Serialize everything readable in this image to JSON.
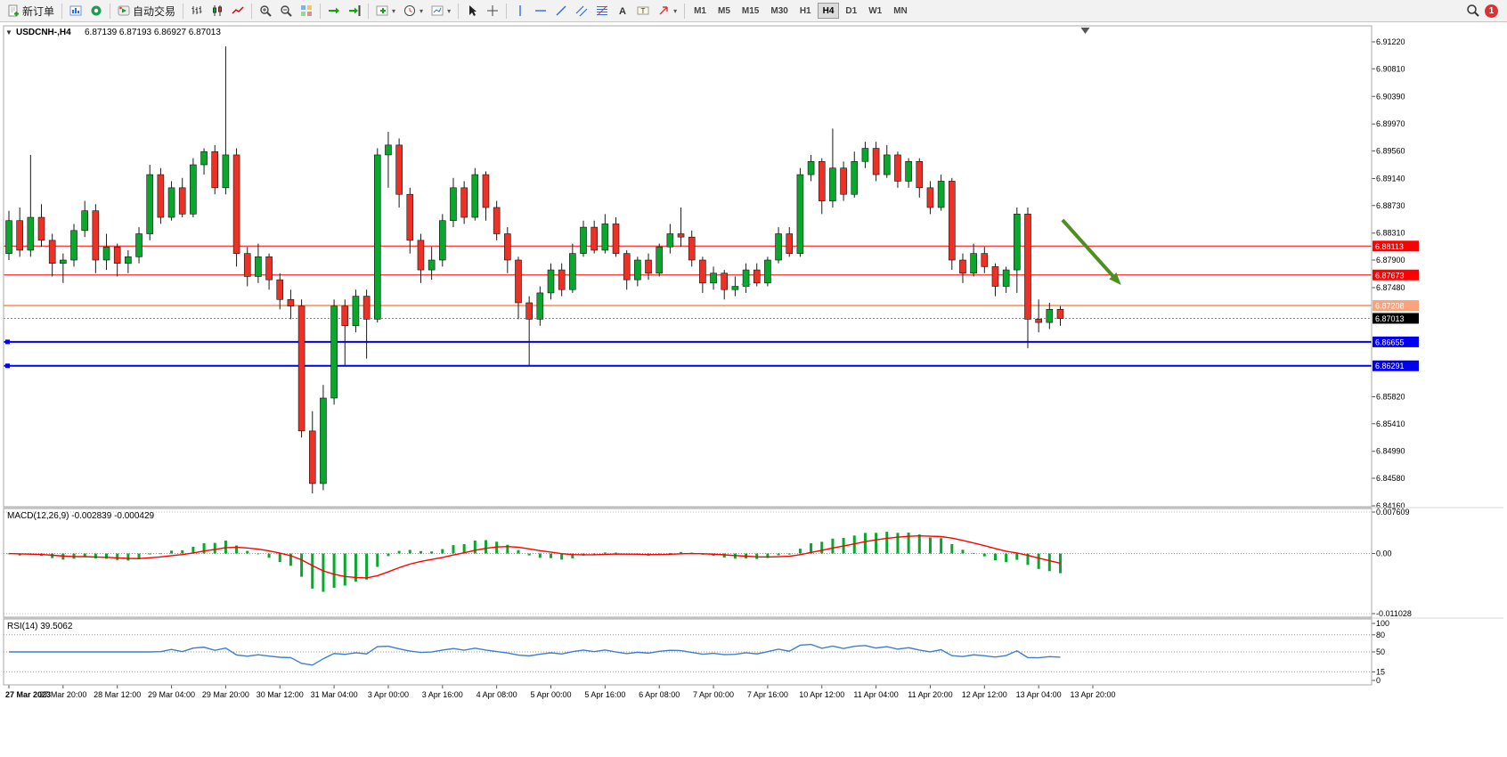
{
  "icons": {
    "quick_trade_arrow": "▼",
    "dropdown_caret": "▾"
  },
  "toolbar": {
    "new_order_label": "新订单",
    "autotrading_label": "自动交易",
    "timeframes": [
      "M1",
      "M5",
      "M15",
      "M30",
      "H1",
      "H4",
      "D1",
      "W1",
      "MN"
    ],
    "active_timeframe": "H4",
    "notification_badge": "1"
  },
  "chart_data": {
    "type": "candlestick",
    "symbol": "USDCNH-",
    "timeframe": "H4",
    "header_title": "USDCNH-,H4",
    "header_quote": "6.87139 6.87193 6.86927 6.87013",
    "quote": {
      "open": "6.87139",
      "high": "6.87193",
      "low": "6.86927",
      "close": "6.87013"
    },
    "ylim": [
      6.8416,
      6.9122
    ],
    "price_ticks": [
      "6.91220",
      "6.90810",
      "6.90390",
      "6.89970",
      "6.89560",
      "6.89140",
      "6.88730",
      "6.88310",
      "6.87900",
      "6.87480",
      "6.85820",
      "6.85410",
      "6.84990",
      "6.84580",
      "6.84160"
    ],
    "time_labels": [
      "27 Mar 2023",
      "27 Mar 20:00",
      "28 Mar 12:00",
      "29 Mar 04:00",
      "29 Mar 20:00",
      "30 Mar 12:00",
      "31 Mar 04:00",
      "3 Apr 00:00",
      "3 Apr 16:00",
      "4 Apr 08:00",
      "5 Apr 00:00",
      "5 Apr 16:00",
      "6 Apr 08:00",
      "7 Apr 00:00",
      "7 Apr 16:00",
      "10 Apr 12:00",
      "11 Apr 04:00",
      "11 Apr 20:00",
      "12 Apr 12:00",
      "13 Apr 04:00",
      "13 Apr 20:00"
    ],
    "colors": {
      "up": "#07a82c",
      "down": "#ee3124",
      "wick": "#1a1a1a",
      "background": "#ffffff"
    },
    "hlines": [
      {
        "price": 6.88113,
        "label": "6.88113",
        "color": "#ff0000",
        "width": 1
      },
      {
        "price": 6.87673,
        "label": "6.87673",
        "color": "#ff0000",
        "width": 1
      },
      {
        "price": 6.87208,
        "label": "6.87208",
        "color": "#f9a27b",
        "width": 2
      },
      {
        "price": 6.86655,
        "label": "6.86655",
        "color": "#0000ee",
        "width": 2,
        "handles": true
      },
      {
        "price": 6.86291,
        "label": "6.86291",
        "color": "#0000ee",
        "width": 2,
        "handles": true
      }
    ],
    "current_price": {
      "value": 6.87013,
      "label": "6.87013",
      "box_color": "#000000"
    },
    "annotations": {
      "arrow": {
        "from_index": 97.2,
        "from_price": 6.8851,
        "to_index": 102.6,
        "to_price": 6.8752,
        "color": "#4e8f20"
      },
      "order_marker": {
        "index": 68,
        "price": 6.8753,
        "color": "#2faa2f"
      },
      "shift_marker_index": 99.3
    },
    "indicators": [
      {
        "name": "MACD",
        "header": "MACD(12,26,9) -0.002839 -0.000429",
        "params": [
          12,
          26,
          9
        ],
        "main_value": "-0.002839",
        "signal_value": "-0.000429",
        "ylim": [
          -0.011028,
          0.007609
        ],
        "ticks": [
          {
            "v": 0.007609,
            "label": "0.007609"
          },
          {
            "v": 0,
            "label": "0.00"
          },
          {
            "v": -0.011028,
            "label": "-0.011028"
          }
        ],
        "histogram_color": "#07a82c",
        "signal_color": "#ff0000"
      },
      {
        "name": "RSI",
        "header": "RSI(14) 39.5062",
        "period": 14,
        "value": "39.5062",
        "ylim": [
          0,
          100
        ],
        "ticks": [
          {
            "v": 100,
            "label": "100"
          },
          {
            "v": 80,
            "label": "80"
          },
          {
            "v": 50,
            "label": "50"
          },
          {
            "v": 15,
            "label": "15"
          },
          {
            "v": 0,
            "label": "0"
          }
        ],
        "levels": [
          80,
          50,
          15
        ],
        "line_color": "#3f7fce"
      }
    ],
    "ohlc": [
      [
        6.88,
        6.8865,
        6.879,
        6.885
      ],
      [
        6.885,
        6.887,
        6.8795,
        6.8805
      ],
      [
        6.8805,
        6.895,
        6.8795,
        6.8855
      ],
      [
        6.8855,
        6.8875,
        6.881,
        6.882
      ],
      [
        6.882,
        6.883,
        6.8765,
        6.8785
      ],
      [
        6.8785,
        6.88,
        6.8755,
        6.879
      ],
      [
        6.879,
        6.8845,
        6.878,
        6.8835
      ],
      [
        6.8835,
        6.888,
        6.8825,
        6.8865
      ],
      [
        6.8865,
        6.8875,
        6.877,
        6.879
      ],
      [
        6.879,
        6.883,
        6.8775,
        6.881
      ],
      [
        6.881,
        6.8815,
        6.8765,
        6.8785
      ],
      [
        6.8785,
        6.8805,
        6.877,
        6.8795
      ],
      [
        6.8795,
        6.884,
        6.8785,
        6.883
      ],
      [
        6.883,
        6.8935,
        6.882,
        6.892
      ],
      [
        6.892,
        6.893,
        6.8845,
        6.8855
      ],
      [
        6.8855,
        6.891,
        6.885,
        6.89
      ],
      [
        6.89,
        6.8915,
        6.8855,
        6.886
      ],
      [
        6.886,
        6.8945,
        6.8855,
        6.8935
      ],
      [
        6.8935,
        6.896,
        6.892,
        6.8955
      ],
      [
        6.8955,
        6.8965,
        6.889,
        6.89
      ],
      [
        6.89,
        6.9115,
        6.889,
        6.895
      ],
      [
        6.895,
        6.896,
        6.878,
        6.88
      ],
      [
        6.88,
        6.881,
        6.875,
        6.8765
      ],
      [
        6.8765,
        6.8815,
        6.8755,
        6.8795
      ],
      [
        6.8795,
        6.88,
        6.8745,
        6.876
      ],
      [
        6.876,
        6.877,
        6.8715,
        6.873
      ],
      [
        6.873,
        6.8745,
        6.87,
        6.872
      ],
      [
        6.872,
        6.873,
        6.852,
        6.853
      ],
      [
        6.853,
        6.856,
        6.8435,
        6.845
      ],
      [
        6.845,
        6.86,
        6.844,
        6.858
      ],
      [
        6.858,
        6.873,
        6.857,
        6.872
      ],
      [
        6.872,
        6.873,
        6.863,
        6.869
      ],
      [
        6.869,
        6.8745,
        6.868,
        6.8735
      ],
      [
        6.8735,
        6.8745,
        6.864,
        6.87
      ],
      [
        6.87,
        6.896,
        6.8695,
        6.895
      ],
      [
        6.895,
        6.8985,
        6.89,
        6.8965
      ],
      [
        6.8965,
        6.8975,
        6.887,
        6.889
      ],
      [
        6.889,
        6.89,
        6.88,
        6.882
      ],
      [
        6.882,
        6.883,
        6.8755,
        6.8775
      ],
      [
        6.8775,
        6.881,
        6.876,
        6.879
      ],
      [
        6.879,
        6.886,
        6.878,
        6.885
      ],
      [
        6.885,
        6.8915,
        6.884,
        6.89
      ],
      [
        6.89,
        6.891,
        6.8845,
        6.8855
      ],
      [
        6.8855,
        6.893,
        6.885,
        6.892
      ],
      [
        6.892,
        6.8925,
        6.885,
        6.887
      ],
      [
        6.887,
        6.888,
        6.882,
        6.883
      ],
      [
        6.883,
        6.884,
        6.877,
        6.879
      ],
      [
        6.879,
        6.8795,
        6.87,
        6.8725
      ],
      [
        6.8725,
        6.8735,
        6.863,
        6.87
      ],
      [
        6.87,
        6.875,
        6.869,
        6.874
      ],
      [
        6.874,
        6.8785,
        6.873,
        6.8775
      ],
      [
        6.8775,
        6.8785,
        6.8735,
        6.8745
      ],
      [
        6.8745,
        6.8815,
        6.874,
        6.88
      ],
      [
        6.88,
        6.885,
        6.8795,
        6.884
      ],
      [
        6.884,
        6.885,
        6.88,
        6.8805
      ],
      [
        6.8805,
        6.886,
        6.88,
        6.8845
      ],
      [
        6.8845,
        6.8855,
        6.8795,
        6.88
      ],
      [
        6.88,
        6.8805,
        6.8745,
        6.876
      ],
      [
        6.876,
        6.8795,
        6.875,
        6.879
      ],
      [
        6.879,
        6.88,
        6.876,
        6.877
      ],
      [
        6.877,
        6.8815,
        6.8765,
        6.881
      ],
      [
        6.881,
        6.8845,
        6.88,
        6.883
      ],
      [
        6.883,
        6.887,
        6.881,
        6.8825
      ],
      [
        6.8825,
        6.8835,
        6.878,
        6.879
      ],
      [
        6.879,
        6.8795,
        6.874,
        6.8755
      ],
      [
        6.8755,
        6.878,
        6.8745,
        6.877
      ],
      [
        6.877,
        6.8775,
        6.873,
        6.8745
      ],
      [
        6.8745,
        6.8765,
        6.8735,
        6.875
      ],
      [
        6.875,
        6.8785,
        6.874,
        6.8775
      ],
      [
        6.8775,
        6.8785,
        6.875,
        6.8755
      ],
      [
        6.8755,
        6.8795,
        6.875,
        6.879
      ],
      [
        6.879,
        6.884,
        6.8785,
        6.883
      ],
      [
        6.883,
        6.884,
        6.8795,
        6.88
      ],
      [
        6.88,
        6.893,
        6.8795,
        6.892
      ],
      [
        6.892,
        6.895,
        6.891,
        6.894
      ],
      [
        6.894,
        6.8945,
        6.886,
        6.888
      ],
      [
        6.888,
        6.899,
        6.887,
        6.893
      ],
      [
        6.893,
        6.894,
        6.888,
        6.889
      ],
      [
        6.889,
        6.8955,
        6.8885,
        6.894
      ],
      [
        6.894,
        6.897,
        6.893,
        6.896
      ],
      [
        6.896,
        6.897,
        6.891,
        6.892
      ],
      [
        6.892,
        6.8965,
        6.8915,
        6.895
      ],
      [
        6.895,
        6.8955,
        6.89,
        6.891
      ],
      [
        6.891,
        6.8945,
        6.89,
        6.894
      ],
      [
        6.894,
        6.8945,
        6.8885,
        6.89
      ],
      [
        6.89,
        6.891,
        6.886,
        6.887
      ],
      [
        6.887,
        6.892,
        6.8865,
        6.891
      ],
      [
        6.891,
        6.8915,
        6.8775,
        6.879
      ],
      [
        6.879,
        6.88,
        6.8755,
        6.877
      ],
      [
        6.877,
        6.8815,
        6.8765,
        6.88
      ],
      [
        6.88,
        6.881,
        6.877,
        6.878
      ],
      [
        6.878,
        6.8785,
        6.8735,
        6.875
      ],
      [
        6.875,
        6.878,
        6.874,
        6.8775
      ],
      [
        6.8775,
        6.887,
        6.874,
        6.886
      ],
      [
        6.886,
        6.887,
        6.8656,
        6.87
      ],
      [
        6.87,
        6.873,
        6.868,
        6.8695
      ],
      [
        6.8695,
        6.8725,
        6.8685,
        6.8715
      ],
      [
        6.8715,
        6.872,
        6.869,
        6.8701
      ]
    ]
  }
}
